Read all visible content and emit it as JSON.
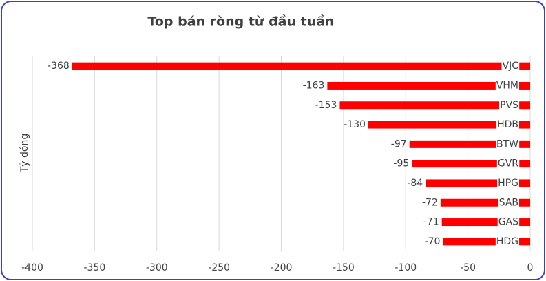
{
  "chart_data": {
    "type": "barh",
    "title": "Top bán ròng từ đầu tuần",
    "ylabel": "Tỷ đồng",
    "categories": [
      "VJC",
      "VHM",
      "PVS",
      "HDB",
      "BTW",
      "GVR",
      "HPG",
      "SAB",
      "GAS",
      "HDG"
    ],
    "values": [
      -368,
      -163,
      -153,
      -130,
      -97,
      -95,
      -84,
      -72,
      -71,
      -70
    ],
    "color": "#ff0000",
    "xlim": [
      -400,
      0
    ],
    "xticks": [
      -400,
      -350,
      -300,
      -250,
      -200,
      -150,
      -100,
      -50,
      0
    ],
    "grid": true
  }
}
